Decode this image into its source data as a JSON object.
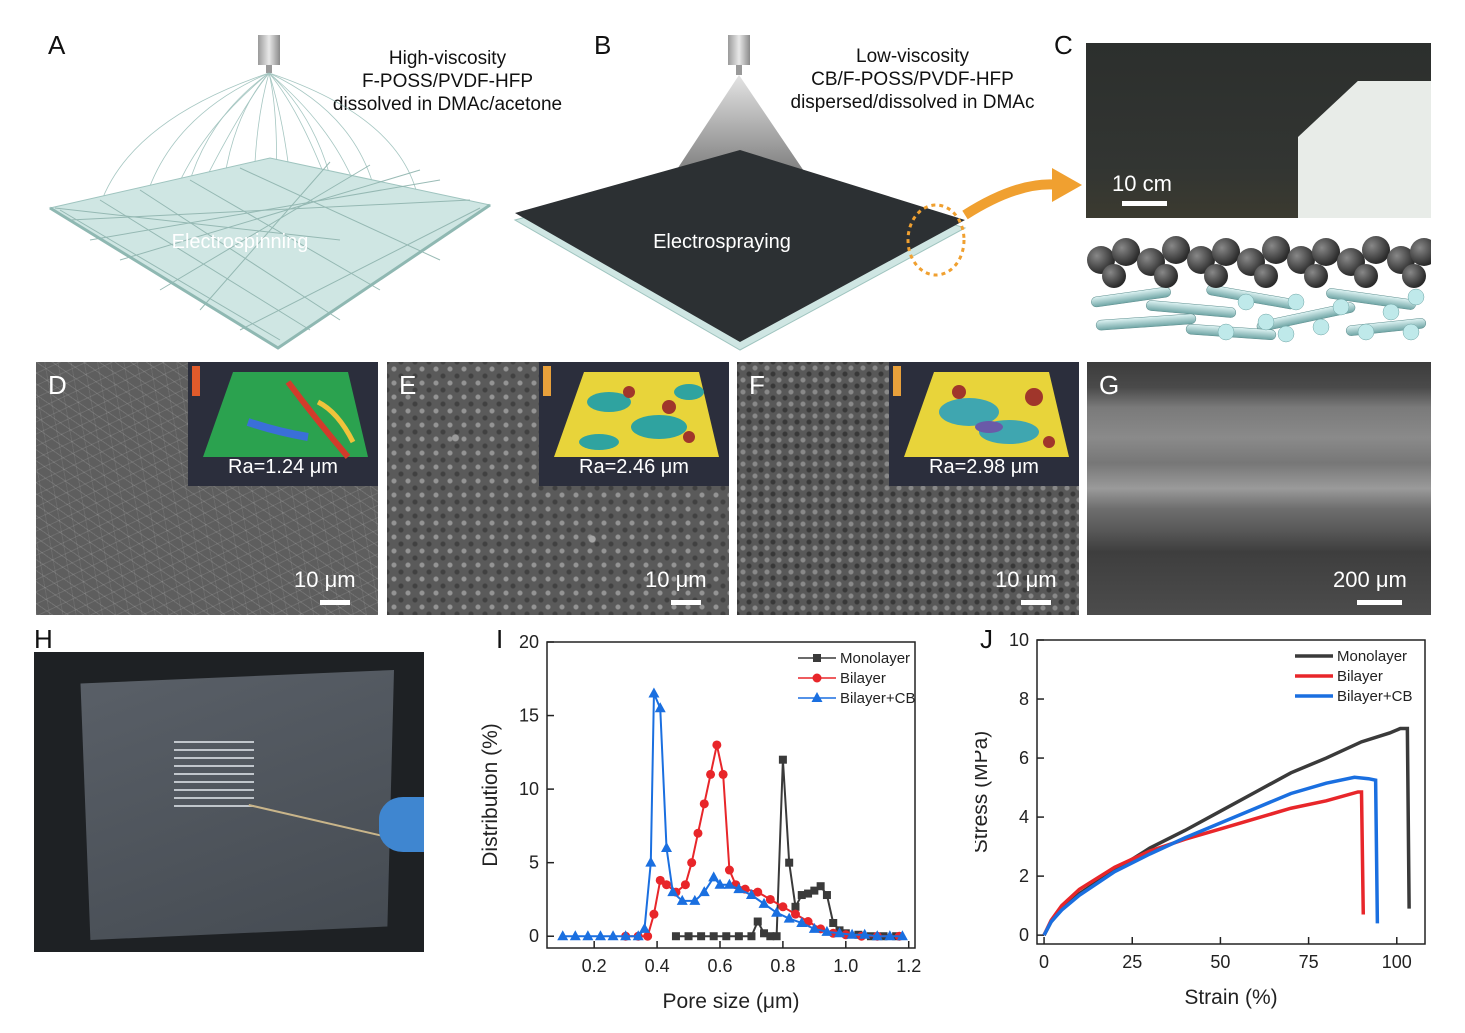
{
  "panels": {
    "A": {
      "label": "A",
      "caption": [
        "High-viscosity",
        "F-POSS/PVDF-HFP",
        "dissolved in DMAc/acetone"
      ],
      "process": "Electrospinning"
    },
    "B": {
      "label": "B",
      "caption": [
        "Low-viscosity",
        "CB/F-POSS/PVDF-HFP",
        "dispersed/dissolved in DMAc"
      ],
      "process": "Electrospraying"
    },
    "C": {
      "label": "C",
      "scale": "10 cm"
    },
    "D": {
      "label": "D",
      "ra": "Ra=1.24 μm",
      "scale": "10 μm"
    },
    "E": {
      "label": "E",
      "ra": "Ra=2.46 μm",
      "scale": "10 μm"
    },
    "F": {
      "label": "F",
      "ra": "Ra=2.98 μm",
      "scale": "10 μm"
    },
    "G": {
      "label": "G",
      "scale": "200 μm"
    },
    "H": {
      "label": "H"
    },
    "I": {
      "label": "I"
    },
    "J": {
      "label": "J"
    }
  },
  "colors": {
    "monolayer": "#3a3a3a",
    "bilayer": "#e8262a",
    "bilayer_cb": "#1a6fe0"
  },
  "chart_data": [
    {
      "type": "line",
      "panel": "I",
      "xlabel": "Pore size (μm)",
      "ylabel": "Distribution (%)",
      "xlim": [
        0.05,
        1.22
      ],
      "ylim": [
        -0.8,
        20
      ],
      "xticks": [
        0.2,
        0.4,
        0.6,
        0.8,
        1.0,
        1.2
      ],
      "xtick_labels": [
        "0.2",
        "0.4",
        "0.6",
        "0.8",
        "1.0",
        "1.2"
      ],
      "yticks": [
        0,
        5,
        10,
        15,
        20
      ],
      "legend_position": "top-right",
      "series": [
        {
          "name": "Monolayer",
          "marker": "square",
          "color": "#3a3a3a",
          "points": [
            [
              0.46,
              0
            ],
            [
              0.5,
              0
            ],
            [
              0.54,
              0
            ],
            [
              0.58,
              0
            ],
            [
              0.62,
              0
            ],
            [
              0.66,
              0
            ],
            [
              0.7,
              0
            ],
            [
              0.72,
              1
            ],
            [
              0.74,
              0.2
            ],
            [
              0.76,
              0
            ],
            [
              0.78,
              0
            ],
            [
              0.8,
              12
            ],
            [
              0.82,
              5
            ],
            [
              0.84,
              2
            ],
            [
              0.86,
              2.8
            ],
            [
              0.88,
              2.9
            ],
            [
              0.9,
              3.1
            ],
            [
              0.92,
              3.4
            ],
            [
              0.94,
              2.8
            ],
            [
              0.96,
              0.9
            ],
            [
              0.98,
              0.4
            ],
            [
              1.0,
              0.2
            ],
            [
              1.04,
              0.1
            ],
            [
              1.08,
              0
            ],
            [
              1.12,
              0
            ],
            [
              1.16,
              0
            ]
          ]
        },
        {
          "name": "Bilayer",
          "marker": "circle",
          "color": "#e8262a",
          "points": [
            [
              0.3,
              0
            ],
            [
              0.34,
              0
            ],
            [
              0.37,
              0
            ],
            [
              0.39,
              1.5
            ],
            [
              0.41,
              3.8
            ],
            [
              0.43,
              3.5
            ],
            [
              0.46,
              3.0
            ],
            [
              0.49,
              3.5
            ],
            [
              0.51,
              5.0
            ],
            [
              0.53,
              7.0
            ],
            [
              0.55,
              9.0
            ],
            [
              0.57,
              11.0
            ],
            [
              0.59,
              13.0
            ],
            [
              0.61,
              11.0
            ],
            [
              0.63,
              4.5
            ],
            [
              0.65,
              3.5
            ],
            [
              0.68,
              3.2
            ],
            [
              0.72,
              3.0
            ],
            [
              0.76,
              2.5
            ],
            [
              0.8,
              2.0
            ],
            [
              0.84,
              1.5
            ],
            [
              0.88,
              1.0
            ],
            [
              0.92,
              0.5
            ],
            [
              0.96,
              0.2
            ],
            [
              1.0,
              0.1
            ],
            [
              1.05,
              0
            ],
            [
              1.1,
              0
            ],
            [
              1.17,
              0
            ]
          ]
        },
        {
          "name": "Bilayer+CB",
          "marker": "triangle",
          "color": "#1a6fe0",
          "points": [
            [
              0.1,
              0
            ],
            [
              0.14,
              0
            ],
            [
              0.18,
              0
            ],
            [
              0.22,
              0
            ],
            [
              0.26,
              0
            ],
            [
              0.3,
              0
            ],
            [
              0.34,
              0
            ],
            [
              0.36,
              0.5
            ],
            [
              0.38,
              5
            ],
            [
              0.39,
              16.5
            ],
            [
              0.41,
              15.5
            ],
            [
              0.43,
              6
            ],
            [
              0.45,
              3
            ],
            [
              0.48,
              2.4
            ],
            [
              0.52,
              2.4
            ],
            [
              0.55,
              3
            ],
            [
              0.58,
              4
            ],
            [
              0.6,
              3.5
            ],
            [
              0.63,
              3.5
            ],
            [
              0.66,
              3.2
            ],
            [
              0.7,
              2.8
            ],
            [
              0.74,
              2.2
            ],
            [
              0.78,
              1.6
            ],
            [
              0.82,
              1.2
            ],
            [
              0.86,
              0.9
            ],
            [
              0.9,
              0.5
            ],
            [
              0.94,
              0.3
            ],
            [
              0.98,
              0.2
            ],
            [
              1.02,
              0.1
            ],
            [
              1.06,
              0.1
            ],
            [
              1.1,
              0
            ],
            [
              1.14,
              0
            ],
            [
              1.18,
              0
            ]
          ]
        }
      ]
    },
    {
      "type": "line",
      "panel": "J",
      "xlabel": "Strain (%)",
      "ylabel": "Stress (MPa)",
      "xlim": [
        -2,
        108
      ],
      "ylim": [
        -0.3,
        10
      ],
      "xticks": [
        0,
        25,
        50,
        75,
        100
      ],
      "yticks": [
        0,
        2,
        4,
        6,
        8,
        10
      ],
      "legend_position": "top-right",
      "series": [
        {
          "name": "Monolayer",
          "color": "#3a3a3a",
          "points": [
            [
              0,
              0
            ],
            [
              2,
              0.45
            ],
            [
              5,
              0.9
            ],
            [
              10,
              1.4
            ],
            [
              20,
              2.2
            ],
            [
              30,
              2.95
            ],
            [
              40,
              3.55
            ],
            [
              50,
              4.2
            ],
            [
              60,
              4.85
            ],
            [
              70,
              5.5
            ],
            [
              80,
              6.0
            ],
            [
              90,
              6.55
            ],
            [
              98,
              6.85
            ],
            [
              101,
              7.0
            ],
            [
              103,
              7.0
            ],
            [
              103.5,
              0.9
            ]
          ]
        },
        {
          "name": "Bilayer",
          "color": "#e8262a",
          "points": [
            [
              0,
              0
            ],
            [
              2,
              0.5
            ],
            [
              5,
              1.0
            ],
            [
              10,
              1.55
            ],
            [
              20,
              2.3
            ],
            [
              30,
              2.85
            ],
            [
              40,
              3.25
            ],
            [
              50,
              3.6
            ],
            [
              60,
              3.95
            ],
            [
              70,
              4.3
            ],
            [
              80,
              4.55
            ],
            [
              89,
              4.85
            ],
            [
              90,
              4.85
            ],
            [
              90.5,
              0.7
            ]
          ]
        },
        {
          "name": "Bilayer+CB",
          "color": "#1a6fe0",
          "points": [
            [
              0,
              0
            ],
            [
              2,
              0.45
            ],
            [
              5,
              0.85
            ],
            [
              10,
              1.35
            ],
            [
              20,
              2.15
            ],
            [
              30,
              2.75
            ],
            [
              40,
              3.3
            ],
            [
              50,
              3.8
            ],
            [
              60,
              4.3
            ],
            [
              70,
              4.8
            ],
            [
              80,
              5.15
            ],
            [
              88,
              5.35
            ],
            [
              92,
              5.3
            ],
            [
              94,
              5.25
            ],
            [
              94.5,
              0.4
            ]
          ]
        }
      ]
    }
  ]
}
